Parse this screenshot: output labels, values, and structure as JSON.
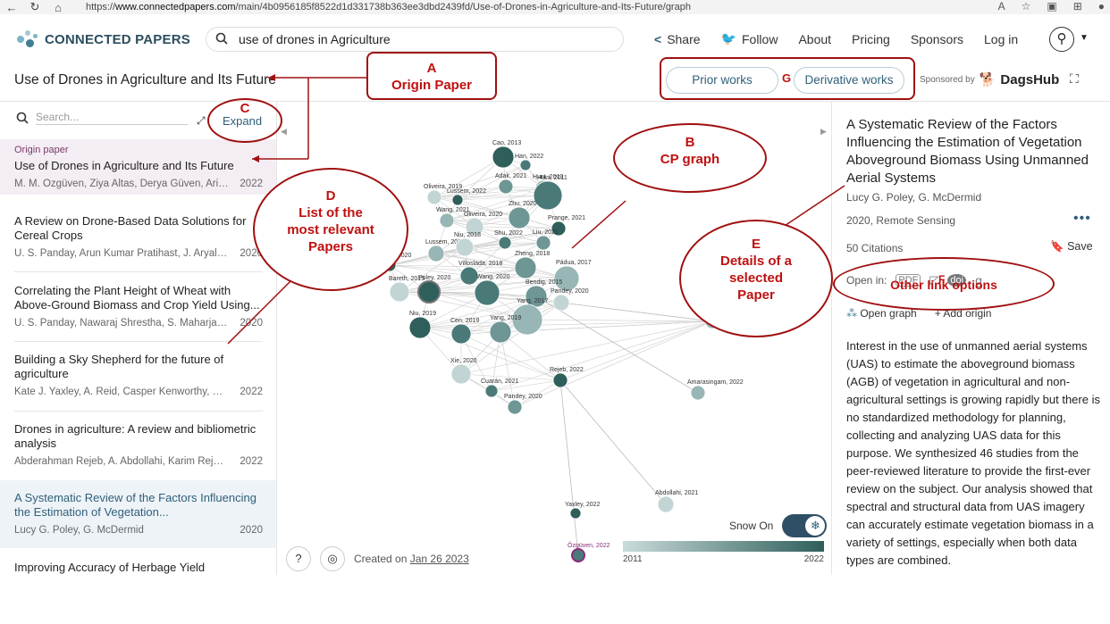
{
  "browser": {
    "url_prefix": "https://",
    "url_domain": "www.connectedpapers.com",
    "url_rest": "/main/4b0956185f8522d1d331738b363ee3dbd2439fd/Use-of-Drones-in-Agriculture-and-Its-Future/graph"
  },
  "header": {
    "logo_text": "CONNECTED PAPERS",
    "search_value": "use of drones in Agriculture",
    "nav": [
      "Share",
      "Follow",
      "About",
      "Pricing",
      "Sponsors",
      "Log in"
    ]
  },
  "titlebar": {
    "title": "Use of Drones in Agriculture and Its Future",
    "prior_works": "Prior works",
    "derivative_works": "Derivative works",
    "sponsored_by": "Sponsored by",
    "sponsor_name": "DagsHub"
  },
  "left": {
    "search_placeholder": "Search...",
    "expand_label": "Expand",
    "origin_label": "Origin paper",
    "papers": [
      {
        "title": "Use of Drones in Agriculture and Its Future",
        "authors": "M. M. Özgüven, Ziya Altas, Derya Güven, Arif...",
        "year": "2022"
      },
      {
        "title": "A Review on Drone-Based Data Solutions for Cereal Crops",
        "authors": "U. S. Panday, Arun Kumar Pratihast, J. Aryal, R....",
        "year": "2020"
      },
      {
        "title": "Correlating the Plant Height of Wheat with Above-Ground Biomass and Crop Yield Using...",
        "authors": "U. S. Panday, Nawaraj Shrestha, S. Maharjan,...",
        "year": "2020"
      },
      {
        "title": "Building a Sky Shepherd for the future of agriculture",
        "authors": "Kate J. Yaxley, A. Reid, Casper Kenworthy, Mo...",
        "year": "2022"
      },
      {
        "title": "Drones in agriculture: A review and bibliometric analysis",
        "authors": "Abderahman Rejeb, A. Abdollahi, Karim Rejeb,...",
        "year": "2022"
      },
      {
        "title": "A Systematic Review of the Factors Influencing the Estimation of Vegetation...",
        "authors": "Lucy G. Poley, G. McDermid",
        "year": "2020"
      },
      {
        "title": "Improving Accuracy of Herbage Yield",
        "authors": "",
        "year": ""
      }
    ]
  },
  "graph": {
    "nodes": [
      {
        "label": "Cao, 2013"
      },
      {
        "label": "Han, 2022"
      },
      {
        "label": "Adak, 2021"
      },
      {
        "label": "Hunt, 2013"
      },
      {
        "label": "Oliveira, 2019"
      },
      {
        "label": "Lussem, 2022"
      },
      {
        "label": "Hunt, 2011"
      },
      {
        "label": "Zhu, 2020"
      },
      {
        "label": "Wang, 2021"
      },
      {
        "label": "Oliveira, 2020"
      },
      {
        "label": "Prange, 2021"
      },
      {
        "label": "Shu, 2022"
      },
      {
        "label": "Liu, 2021"
      },
      {
        "label": "Lussem, 2019"
      },
      {
        "label": "Niu, 2018"
      },
      {
        "label": "Poley, 2020"
      },
      {
        "label": "Villoslada, 2018"
      },
      {
        "label": "Zheng, 2018"
      },
      {
        "label": "Pádua, 2017"
      },
      {
        "label": "Bareth, 2015"
      },
      {
        "label": "Poley, 2020"
      },
      {
        "label": "Wang, 2020"
      },
      {
        "label": "Bendig, 2015"
      },
      {
        "label": "Yang, 2017"
      },
      {
        "label": "Pandey, 2020"
      },
      {
        "label": "Niu, 2019"
      },
      {
        "label": "Cen, 2019"
      },
      {
        "label": "Yang, 2019"
      },
      {
        "label": "Srivastava, 2020"
      },
      {
        "label": "Xie, 2020"
      },
      {
        "label": "Rejeb, 2022"
      },
      {
        "label": "Cuarán, 2021"
      },
      {
        "label": "Pandey, 2020"
      },
      {
        "label": "Amarasingam, 2022"
      },
      {
        "label": "Abdollahi, 2021"
      },
      {
        "label": "Yaxley, 2022"
      },
      {
        "label": "Özgüven, 2022"
      }
    ],
    "created_prefix": "Created on",
    "created_date": "Jan 26 2023",
    "snow_label": "Snow On",
    "legend_min": "2011",
    "legend_max": "2022"
  },
  "right": {
    "title": "A Systematic Review of the Factors Influencing the Estimation of Vegetation Aboveground Biomass Using Unmanned Aerial Systems",
    "authors": "Lucy G. Poley, G. McDermid",
    "year_venue": "2020, Remote Sensing",
    "citations": "50 Citations",
    "save": "Save",
    "open_in": "Open in:",
    "open_graph": "Open graph",
    "add_origin": "Add origin",
    "abstract": "Interest in the use of unmanned aerial systems (UAS) to estimate the aboveground biomass (AGB) of vegetation in agricultural and non-agricultural settings is growing rapidly but there is no standardized methodology for planning, collecting and analyzing UAS data for this purpose. We synthesized 46 studies from the peer-reviewed literature to provide the first-ever review on the subject. Our analysis showed that spectral and structural data from UAS imagery can accurately estimate vegetation biomass in a variety of settings, especially when both data types are combined."
  },
  "annotations": {
    "a": "A\nOrigin Paper",
    "b": "B\nCP graph",
    "c": "C",
    "d": "D\nList of the\nmost relevant\nPapers",
    "e": "E\nDetails of a\nselected\nPaper",
    "f": "F",
    "f_text": "Other link options",
    "g": "G"
  }
}
